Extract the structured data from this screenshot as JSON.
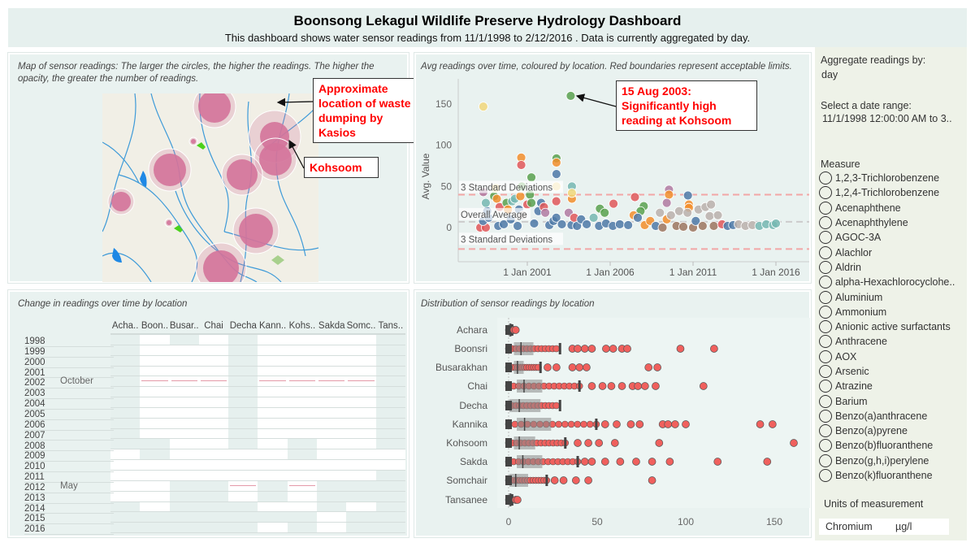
{
  "header": {
    "title": "Boonsong Lekagul Wildlife Preserve Hydrology Dashboard",
    "subtitle": "This dashboard shows water sensor readings from 11/1/1998 to 2/12/2016 . Data is currently aggregated by day."
  },
  "map": {
    "title": "Map of sensor readings: The larger the circles, the higher the readings. The higher the opacity, the greater the number of readings.",
    "callout_dumping": "Approximate location of waste dumping by Kasios",
    "callout_kohsoom": "Kohsoom",
    "circle_color": "#d4739a",
    "river_color": "#3d9ad8"
  },
  "scatter": {
    "title": "Avg readings over time, coloured by location. Red boundaries represent acceptable limits.",
    "callout": "15 Aug 2003: Significantly high reading at Kohsoom",
    "ylabel": "Avg. Value",
    "ref_upper_label": "3 Standard Deviations",
    "ref_avg_label": "Overall Average",
    "ref_lower_label": "3 Standard Deviations"
  },
  "heatmap": {
    "title": "Change in readings over time by location",
    "columns": [
      "Acha..",
      "Boon..",
      "Busar..",
      "Chai",
      "Decha",
      "Kann..",
      "Kohs..",
      "Sakda",
      "Somc..",
      "Tans.."
    ],
    "month_labels": [
      {
        "year": "2002",
        "label": "October"
      },
      {
        "year": "2012",
        "label": "May"
      }
    ],
    "rows": [
      {
        "year": "1998",
        "cells": [
          0,
          1,
          0,
          1,
          0,
          1,
          1,
          1,
          1,
          0
        ]
      },
      {
        "year": "1999",
        "cells": [
          0,
          1,
          1,
          1,
          0,
          1,
          1,
          1,
          1,
          0
        ]
      },
      {
        "year": "2000",
        "cells": [
          0,
          1,
          1,
          1,
          0,
          1,
          1,
          1,
          1,
          0
        ]
      },
      {
        "year": "2001",
        "cells": [
          0,
          1,
          1,
          1,
          0,
          1,
          1,
          1,
          1,
          0
        ]
      },
      {
        "year": "2002",
        "cells": [
          0,
          1,
          1,
          1,
          0,
          1,
          1,
          1,
          1,
          0
        ],
        "marks": [
          0,
          1,
          1,
          1,
          0,
          1,
          1,
          1,
          1,
          0
        ]
      },
      {
        "year": "2003",
        "cells": [
          0,
          1,
          1,
          1,
          0,
          1,
          1,
          1,
          1,
          0
        ]
      },
      {
        "year": "2004",
        "cells": [
          0,
          1,
          1,
          1,
          0,
          1,
          1,
          1,
          1,
          0
        ]
      },
      {
        "year": "2005",
        "cells": [
          0,
          1,
          1,
          1,
          0,
          1,
          1,
          1,
          1,
          0
        ]
      },
      {
        "year": "2006",
        "cells": [
          0,
          1,
          1,
          1,
          0,
          1,
          1,
          1,
          1,
          0
        ]
      },
      {
        "year": "2007",
        "cells": [
          0,
          1,
          1,
          1,
          0,
          1,
          1,
          1,
          1,
          0
        ]
      },
      {
        "year": "2008",
        "cells": [
          0,
          0,
          1,
          1,
          0,
          1,
          0,
          1,
          1,
          0
        ]
      },
      {
        "year": "2009",
        "cells": [
          1,
          0,
          1,
          1,
          1,
          1,
          0,
          1,
          1,
          1
        ]
      },
      {
        "year": "2010",
        "cells": [
          1,
          1,
          1,
          1,
          1,
          1,
          1,
          1,
          1,
          1
        ]
      },
      {
        "year": "2011",
        "cells": [
          1,
          1,
          1,
          1,
          1,
          1,
          1,
          1,
          1,
          0
        ]
      },
      {
        "year": "2012",
        "cells": [
          1,
          1,
          0,
          0,
          1,
          0,
          1,
          0,
          0,
          0
        ],
        "marks": [
          0,
          0,
          0,
          0,
          1,
          0,
          1,
          0,
          0,
          0
        ]
      },
      {
        "year": "2013",
        "cells": [
          1,
          1,
          0,
          0,
          1,
          0,
          1,
          0,
          0,
          0
        ]
      },
      {
        "year": "2014",
        "cells": [
          0,
          1,
          0,
          0,
          0,
          1,
          1,
          0,
          1,
          0
        ]
      },
      {
        "year": "2015",
        "cells": [
          0,
          0,
          0,
          0,
          0,
          0,
          0,
          1,
          0,
          0
        ]
      },
      {
        "year": "2016",
        "cells": [
          0,
          0,
          0,
          0,
          0,
          1,
          0,
          1,
          0,
          0
        ]
      }
    ]
  },
  "boxplot": {
    "title": "Distribution of sensor readings by location"
  },
  "sidebar": {
    "aggregate_label": "Aggregate readings by:",
    "aggregate_value": "day",
    "date_label": "Select a date range:",
    "date_value": "11/1/1998 12:00:00 AM to 3..",
    "measure_label": "Measure",
    "measures": [
      "1,2,3-Trichlorobenzene",
      "1,2,4-Trichlorobenzene",
      "Acenaphthene",
      "Acenaphthylene",
      "AGOC-3A",
      "Alachlor",
      "Aldrin",
      "alpha-Hexachlorocyclohe..",
      "Aluminium",
      "Ammonium",
      "Anionic active surfactants",
      "Anthracene",
      "AOX",
      "Arsenic",
      "Atrazine",
      "Barium",
      "Benzo(a)anthracene",
      "Benzo(a)pyrene",
      "Benzo(b)fluoranthene",
      "Benzo(g,h,i)perylene",
      "Benzo(k)fluoranthene"
    ],
    "units_label": "Units of measurement",
    "units_measure": "Chromium",
    "units_value": "µg/l"
  },
  "chart_data": [
    {
      "type": "scatter",
      "title": "Avg readings over time, coloured by location. Red boundaries represent acceptable limits.",
      "xlabel": "",
      "ylabel": "Avg. Value",
      "x_ticks": [
        "1 Jan 2001",
        "1 Jan 2006",
        "1 Jan 2011",
        "1 Jan 2016"
      ],
      "y_ticks": [
        0,
        50,
        100,
        150
      ],
      "ylim": [
        -30,
        170
      ],
      "grid": false,
      "reference_lines": [
        {
          "label": "3 Standard Deviations",
          "value": 40,
          "color": "#f2a6a6"
        },
        {
          "label": "Overall Average",
          "value": 7,
          "color": "#cccccc"
        },
        {
          "label": "3 Standard Deviations",
          "value": -26,
          "color": "#f2a6a6"
        }
      ],
      "points": [
        [
          "1998-05-08",
          147,
          "#f1d77a"
        ],
        [
          "2003-08-15",
          160,
          "#59a14f"
        ],
        [
          "2000-08-20",
          85,
          "#f28e2b"
        ],
        [
          "2000-08-20",
          76,
          "#e15759"
        ],
        [
          "2001-04-01",
          61,
          "#59a14f"
        ],
        [
          "2002-10-05",
          84,
          "#59a14f"
        ],
        [
          "2002-10-05",
          79,
          "#f28e2b"
        ],
        [
          "2002-10-05",
          65,
          "#4e79a7"
        ],
        [
          "2002-10-05",
          50,
          "#f1d77a"
        ],
        [
          "2003-09-10",
          50,
          "#76b7b2"
        ],
        [
          "2003-09-10",
          35,
          "#f28e2b"
        ],
        [
          "2003-09-10",
          42,
          "#f1d77a"
        ],
        [
          "1998-05-08",
          43,
          "#b07aa1"
        ],
        [
          "2005-05-20",
          23,
          "#59a14f"
        ],
        [
          "2005-09-01",
          18,
          "#59a14f"
        ],
        [
          "2006-03-15",
          29,
          "#e15759"
        ],
        [
          "2007-06-30",
          37,
          "#e15759"
        ],
        [
          "2008-01-10",
          26,
          "#59a14f"
        ],
        [
          "2007-11-01",
          20,
          "#59a14f"
        ],
        [
          "2009-07-20",
          46,
          "#b07aa1"
        ],
        [
          "2009-07-20",
          40,
          "#f28e2b"
        ],
        [
          "2009-06-01",
          30,
          "#b07aa1"
        ],
        [
          "2010-09-10",
          39,
          "#4e79a7"
        ],
        [
          "2010-10-01",
          28,
          "#f28e2b"
        ],
        [
          "2010-10-01",
          24,
          "#f28e2b"
        ],
        [
          "1998-03-01",
          0,
          "#e15759"
        ],
        [
          "1998-07-01",
          0,
          "#e15759"
        ],
        [
          "1998-05-01",
          8,
          "#4e79a7"
        ],
        [
          "1998-09-01",
          12,
          "#4e79a7"
        ],
        [
          "1998-08-01",
          20,
          "#4e79a7"
        ],
        [
          "1998-07-01",
          30,
          "#76b7b2"
        ],
        [
          "1999-01-01",
          38,
          "#59a14f"
        ],
        [
          "1999-03-01",
          35,
          "#f28e2b"
        ],
        [
          "1999-02-01",
          48,
          "#f1d77a"
        ],
        [
          "1999-05-01",
          25,
          "#e15759"
        ],
        [
          "1999-04-01",
          2,
          "#4e79a7"
        ],
        [
          "1999-08-01",
          4,
          "#4e79a7"
        ],
        [
          "1999-10-01",
          30,
          "#59a14f"
        ],
        [
          "1999-11-01",
          22,
          "#f28e2b"
        ],
        [
          "2000-01-01",
          10,
          "#4e79a7"
        ],
        [
          "2000-02-01",
          32,
          "#76b7b2"
        ],
        [
          "2000-04-01",
          35,
          "#76b7b2"
        ],
        [
          "2000-06-01",
          2,
          "#4e79a7"
        ],
        [
          "2000-07-01",
          22,
          "#4e79a7"
        ],
        [
          "2000-09-01",
          50,
          "#59a14f"
        ],
        [
          "2000-08-01",
          38,
          "#f28e2b"
        ],
        [
          "2000-10-01",
          15,
          "#bab0ac"
        ],
        [
          "2001-01-01",
          28,
          "#e15759"
        ],
        [
          "2001-03-01",
          40,
          "#59a14f"
        ],
        [
          "2001-04-01",
          30,
          "#59a14f"
        ],
        [
          "2001-06-01",
          5,
          "#4e79a7"
        ],
        [
          "2001-09-01",
          20,
          "#4e79a7"
        ],
        [
          "2001-11-01",
          30,
          "#4e79a7"
        ],
        [
          "2002-01-01",
          25,
          "#e15759"
        ],
        [
          "2002-02-01",
          18,
          "#b07aa1"
        ],
        [
          "2002-05-01",
          3,
          "#4e79a7"
        ],
        [
          "2002-08-01",
          8,
          "#4e79a7"
        ],
        [
          "2002-10-01",
          12,
          "#4e79a7"
        ],
        [
          "2002-10-01",
          32,
          "#e15759"
        ],
        [
          "2003-02-01",
          4,
          "#4e79a7"
        ],
        [
          "2003-07-01",
          18,
          "#b07aa1"
        ],
        [
          "2003-09-01",
          3,
          "#4e79a7"
        ],
        [
          "2003-11-01",
          12,
          "#e15759"
        ],
        [
          "2004-01-01",
          2,
          "#4e79a7"
        ],
        [
          "2004-04-01",
          10,
          "#4e79a7"
        ],
        [
          "2004-08-01",
          4,
          "#4e79a7"
        ],
        [
          "2005-01-01",
          12,
          "#76b7b2"
        ],
        [
          "2005-05-01",
          2,
          "#4e79a7"
        ],
        [
          "2005-10-01",
          5,
          "#4e79a7"
        ],
        [
          "2006-03-01",
          2,
          "#4e79a7"
        ],
        [
          "2006-08-01",
          4,
          "#4e79a7"
        ],
        [
          "2007-02-01",
          3,
          "#4e79a7"
        ],
        [
          "2007-06-01",
          15,
          "#f28e2b"
        ],
        [
          "2007-09-01",
          12,
          "#4e79a7"
        ],
        [
          "2008-02-01",
          3,
          "#f28e2b"
        ],
        [
          "2008-06-01",
          8,
          "#f28e2b"
        ],
        [
          "2008-10-01",
          2,
          "#4e79a7"
        ],
        [
          "2009-01-01",
          18,
          "#bab0ac"
        ],
        [
          "2009-03-01",
          0,
          "#9c755f"
        ],
        [
          "2009-06-01",
          10,
          "#f28e2b"
        ],
        [
          "2009-09-01",
          15,
          "#bab0ac"
        ],
        [
          "2010-01-01",
          2,
          "#9c755f"
        ],
        [
          "2010-03-01",
          20,
          "#bab0ac"
        ],
        [
          "2010-06-01",
          1,
          "#9c755f"
        ],
        [
          "2010-09-01",
          18,
          "#bab0ac"
        ],
        [
          "2011-01-01",
          0,
          "#9c755f"
        ],
        [
          "2011-03-01",
          8,
          "#4e79a7"
        ],
        [
          "2011-05-01",
          22,
          "#bab0ac"
        ],
        [
          "2011-08-01",
          2,
          "#9c755f"
        ],
        [
          "2011-10-01",
          25,
          "#bab0ac"
        ],
        [
          "2012-01-01",
          14,
          "#bab0ac"
        ],
        [
          "2012-02-01",
          28,
          "#bab0ac"
        ],
        [
          "2012-04-01",
          2,
          "#9c755f"
        ],
        [
          "2012-07-01",
          15,
          "#bab0ac"
        ],
        [
          "2012-10-01",
          4,
          "#e15759"
        ],
        [
          "2013-02-01",
          2,
          "#4e79a7"
        ],
        [
          "2013-06-01",
          3,
          "#4e79a7"
        ],
        [
          "2013-10-01",
          4,
          "#bab0ac"
        ],
        [
          "2014-03-01",
          2,
          "#bab0ac"
        ],
        [
          "2014-08-01",
          3,
          "#bab0ac"
        ],
        [
          "2015-01-01",
          2,
          "#76b7b2"
        ],
        [
          "2015-06-01",
          4,
          "#76b7b2"
        ],
        [
          "2015-11-01",
          3,
          "#76b7b2"
        ],
        [
          "2016-01-01",
          5,
          "#76b7b2"
        ]
      ]
    },
    {
      "type": "box",
      "title": "Distribution of sensor readings by location",
      "x_ticks": [
        0,
        50,
        100,
        150
      ],
      "xlim": [
        0,
        160
      ],
      "point_color": "#f0605d",
      "categories": [
        "Achara",
        "Boonsri",
        "Busarakhan",
        "Chai",
        "Decha",
        "Kannika",
        "Kohsoom",
        "Sakda",
        "Somchair",
        "Tansanee"
      ],
      "boxes": [
        {
          "min": 0,
          "q1": 0,
          "median": 1,
          "q3": 2,
          "max": 2,
          "outliers": [
            3,
            4
          ]
        },
        {
          "min": 0,
          "q1": 3,
          "median": 7,
          "q3": 14,
          "max": 29,
          "outliers": [
            36,
            39,
            43,
            47,
            55,
            59,
            64,
            67,
            97,
            116
          ]
        },
        {
          "min": 0,
          "q1": 3,
          "median": 5,
          "q3": 8.5,
          "max": 18,
          "outliers": [
            22,
            27,
            36,
            40,
            44,
            79,
            84
          ]
        },
        {
          "min": 0,
          "q1": 4.6,
          "median": 8.7,
          "q3": 19,
          "max": 40,
          "outliers": [
            47,
            53,
            58,
            64,
            70,
            73,
            77,
            83,
            110
          ]
        },
        {
          "min": 0,
          "q1": 0.5,
          "median": 6,
          "q3": 18,
          "max": 29,
          "outliers": []
        },
        {
          "min": 0,
          "q1": 4.6,
          "median": 9,
          "q3": 24,
          "max": 49.5,
          "outliers": [
            54.5,
            61,
            69,
            74,
            87,
            90,
            94,
            100,
            142,
            149
          ]
        },
        {
          "min": 0,
          "q1": 3,
          "median": 6,
          "q3": 15,
          "max": 32,
          "outliers": [
            39,
            45,
            51,
            60,
            85,
            161
          ]
        },
        {
          "min": 0,
          "q1": 4.6,
          "median": 8,
          "q3": 19,
          "max": 39,
          "outliers": [
            43,
            47,
            54.5,
            63,
            72,
            81,
            91,
            118,
            146
          ]
        },
        {
          "min": 0,
          "q1": 0.5,
          "median": 4,
          "q3": 11,
          "max": 21.5,
          "outliers": [
            26,
            31,
            38,
            45,
            81
          ]
        },
        {
          "min": 0,
          "q1": 0,
          "median": 1,
          "q3": 2,
          "max": 2,
          "outliers": [
            4,
            5
          ]
        }
      ]
    }
  ]
}
